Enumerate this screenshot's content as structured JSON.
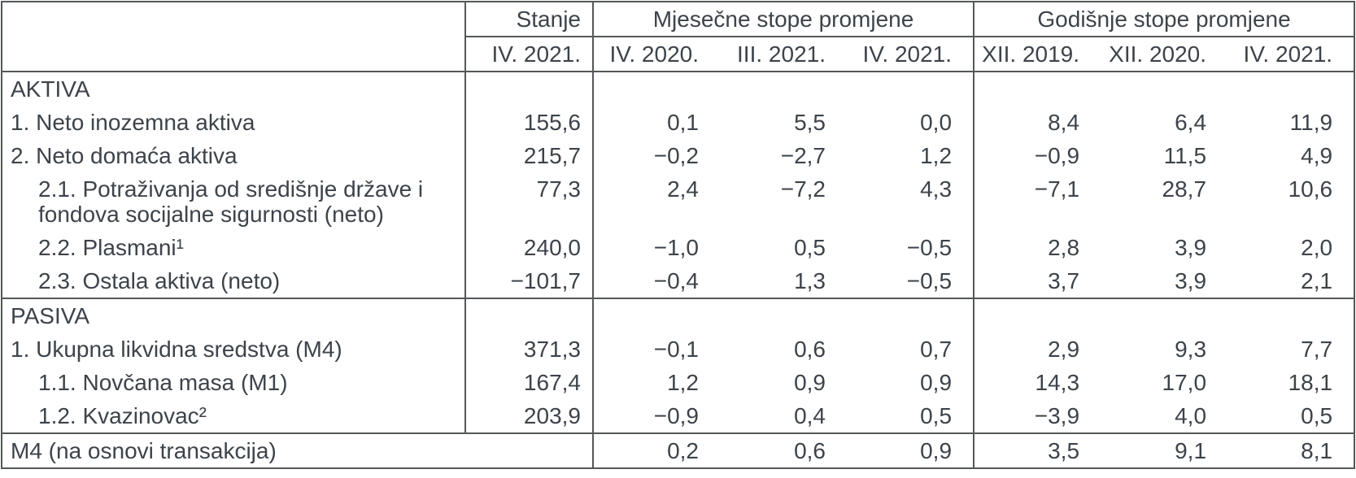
{
  "colors": {
    "text": "#3d434a",
    "border": "#54575a",
    "background": "#ffffff"
  },
  "table": {
    "header": {
      "label_column": "",
      "stanje": {
        "title": "Stanje",
        "period": "IV. 2021."
      },
      "monthly": {
        "title": "Mjesečne stope promjene",
        "periods": [
          "IV. 2020.",
          "III. 2021.",
          "IV. 2021."
        ]
      },
      "annual": {
        "title": "Godišnje stope promjene",
        "periods": [
          "XII. 2019.",
          "XII. 2020.",
          "IV. 2021."
        ]
      }
    },
    "rows": [
      {
        "label": "AKTIVA",
        "kind": "section",
        "values": [
          "",
          "",
          "",
          "",
          "",
          "",
          ""
        ]
      },
      {
        "label": "1. Neto inozemna aktiva",
        "kind": "item",
        "values": [
          "155,6",
          "0,1",
          "5,5",
          "0,0",
          "8,4",
          "6,4",
          "11,9"
        ]
      },
      {
        "label": "2. Neto domaća aktiva",
        "kind": "item",
        "values": [
          "215,7",
          "−0,2",
          "−2,7",
          "1,2",
          "−0,9",
          "11,5",
          "4,9"
        ]
      },
      {
        "label": "2.1. Potraživanja od središnje države i fondova socijalne sigurnosti (neto)",
        "kind": "sub-item",
        "values": [
          "77,3",
          "2,4",
          "−7,2",
          "4,3",
          "−7,1",
          "28,7",
          "10,6"
        ]
      },
      {
        "label": "2.2. Plasmani¹",
        "kind": "sub-item",
        "values": [
          "240,0",
          "−1,0",
          "0,5",
          "−0,5",
          "2,8",
          "3,9",
          "2,0"
        ]
      },
      {
        "label": "2.3. Ostala aktiva (neto)",
        "kind": "sub-item",
        "values": [
          "−101,7",
          "−0,4",
          "1,3",
          "−0,5",
          "3,7",
          "3,9",
          "2,1"
        ]
      },
      {
        "label": "PASIVA",
        "kind": "section",
        "values": [
          "",
          "",
          "",
          "",
          "",
          "",
          ""
        ]
      },
      {
        "label": "1. Ukupna likvidna sredstva (M4)",
        "kind": "item",
        "values": [
          "371,3",
          "−0,1",
          "0,6",
          "0,7",
          "2,9",
          "9,3",
          "7,7"
        ]
      },
      {
        "label": "1.1. Novčana masa (M1)",
        "kind": "sub-item",
        "values": [
          "167,4",
          "1,2",
          "0,9",
          "0,9",
          "14,3",
          "17,0",
          "18,1"
        ]
      },
      {
        "label": "1.2. Kvazinovac²",
        "kind": "sub-item",
        "values": [
          "203,9",
          "−0,9",
          "0,4",
          "0,5",
          "−3,9",
          "4,0",
          "0,5"
        ]
      }
    ],
    "footer": {
      "label": "M4 (na osnovi transakcija)",
      "values": [
        "0,2",
        "0,6",
        "0,9",
        "3,5",
        "9,1",
        "8,1"
      ]
    }
  },
  "chart_data": {
    "type": "table",
    "title": "",
    "columns": [
      "",
      "Stanje IV. 2021.",
      "Mjesečne stope promjene IV. 2020.",
      "Mjesečne stope promjene III. 2021.",
      "Mjesečne stope promjene IV. 2021.",
      "Godišnje stope promjene XII. 2019.",
      "Godišnje stope promjene XII. 2020.",
      "Godišnje stope promjene IV. 2021."
    ],
    "rows": [
      [
        "AKTIVA",
        null,
        null,
        null,
        null,
        null,
        null,
        null
      ],
      [
        "1. Neto inozemna aktiva",
        155.6,
        0.1,
        5.5,
        0.0,
        8.4,
        6.4,
        11.9
      ],
      [
        "2. Neto domaća aktiva",
        215.7,
        -0.2,
        -2.7,
        1.2,
        -0.9,
        11.5,
        4.9
      ],
      [
        "2.1. Potraživanja od središnje države i fondova socijalne sigurnosti (neto)",
        77.3,
        2.4,
        -7.2,
        4.3,
        -7.1,
        28.7,
        10.6
      ],
      [
        "2.2. Plasmani¹",
        240.0,
        -1.0,
        0.5,
        -0.5,
        2.8,
        3.9,
        2.0
      ],
      [
        "2.3. Ostala aktiva (neto)",
        -101.7,
        -0.4,
        1.3,
        -0.5,
        3.7,
        3.9,
        2.1
      ],
      [
        "PASIVA",
        null,
        null,
        null,
        null,
        null,
        null,
        null
      ],
      [
        "1. Ukupna likvidna sredstva (M4)",
        371.3,
        -0.1,
        0.6,
        0.7,
        2.9,
        9.3,
        7.7
      ],
      [
        "1.1. Novčana masa (M1)",
        167.4,
        1.2,
        0.9,
        0.9,
        14.3,
        17.0,
        18.1
      ],
      [
        "1.2. Kvazinovac²",
        203.9,
        -0.9,
        0.4,
        0.5,
        -3.9,
        4.0,
        0.5
      ],
      [
        "M4 (na osnovi transakcija)",
        null,
        0.2,
        0.6,
        0.9,
        3.5,
        9.1,
        8.1
      ]
    ]
  }
}
